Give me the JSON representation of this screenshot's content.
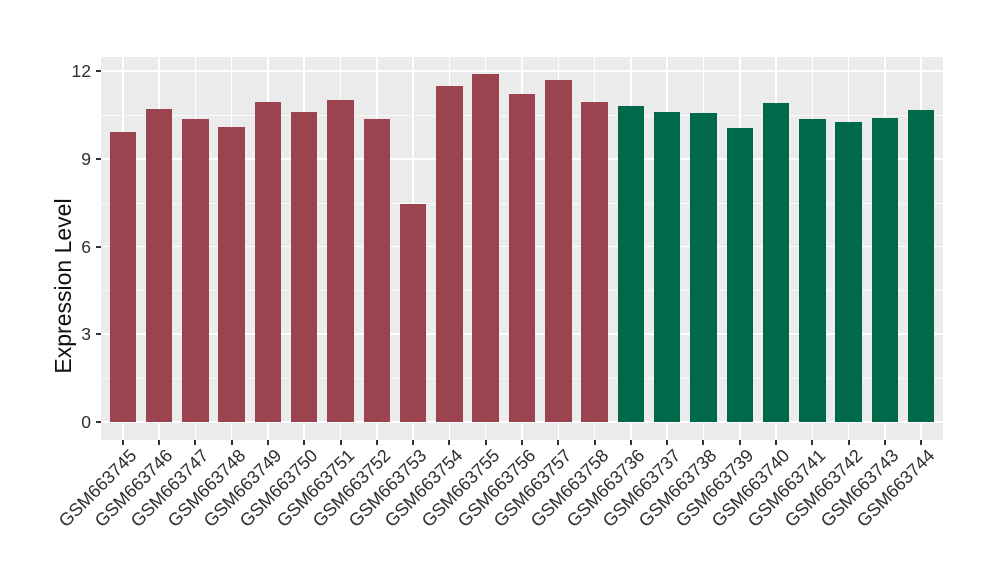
{
  "figure": {
    "background": "#FFFFFF",
    "panel_background": "#EBEBEB",
    "gridline_color": "#FFFFFF",
    "tick_mark_color": "#333333",
    "axis_text_color": "#2E2E2E",
    "axis_title_color": "#111111"
  },
  "chart_data": {
    "type": "bar",
    "title": "",
    "xlabel": "",
    "ylabel": "Expression Level",
    "ylim": [
      0,
      12.5
    ],
    "yticks": [
      0,
      3,
      6,
      9,
      12
    ],
    "minor_yticks": [
      1.5,
      4.5,
      7.5,
      10.5
    ],
    "grid": "white major and minor gridlines on gray panel",
    "legend_position": "none",
    "x_tick_rotation_deg": 45,
    "group_colors": {
      "group1": "#9B4450",
      "group2": "#00694B"
    },
    "categories": [
      "GSM663745",
      "GSM663746",
      "GSM663747",
      "GSM663748",
      "GSM663749",
      "GSM663750",
      "GSM663751",
      "GSM663752",
      "GSM663753",
      "GSM663754",
      "GSM663755",
      "GSM663756",
      "GSM663757",
      "GSM663758",
      "GSM663736",
      "GSM663737",
      "GSM663738",
      "GSM663739",
      "GSM663740",
      "GSM663741",
      "GSM663742",
      "GSM663743",
      "GSM663744"
    ],
    "values": [
      9.9,
      10.7,
      10.35,
      10.1,
      10.95,
      10.6,
      11.0,
      10.35,
      7.45,
      11.5,
      11.9,
      11.2,
      11.7,
      10.95,
      10.8,
      10.6,
      10.55,
      10.05,
      10.9,
      10.35,
      10.25,
      10.4,
      10.65
    ],
    "bar_groups": [
      "group1",
      "group1",
      "group1",
      "group1",
      "group1",
      "group1",
      "group1",
      "group1",
      "group1",
      "group1",
      "group1",
      "group1",
      "group1",
      "group1",
      "group2",
      "group2",
      "group2",
      "group2",
      "group2",
      "group2",
      "group2",
      "group2",
      "group2"
    ]
  }
}
